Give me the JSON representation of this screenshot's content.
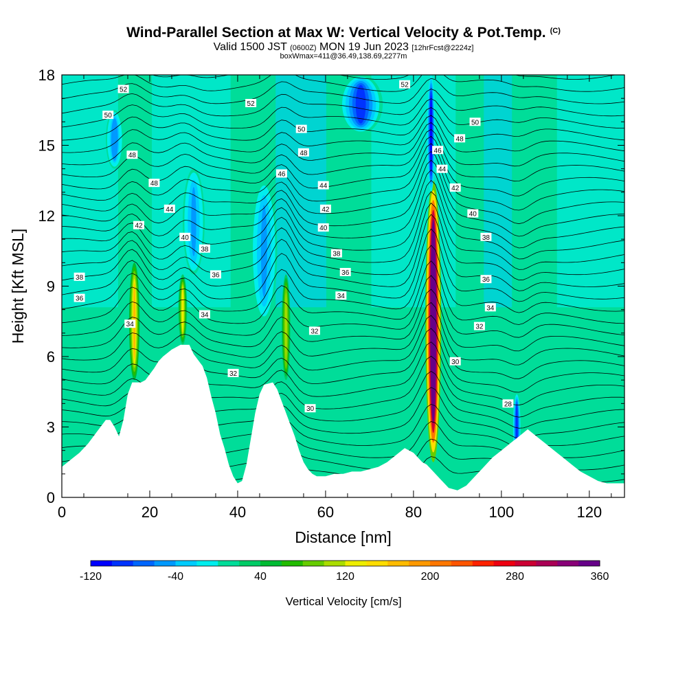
{
  "header": {
    "title": "Wind-Parallel Section at Max W: Vertical Velocity & Pot.Temp.",
    "copyright": "(C)",
    "valid_pre": "Valid 1500 JST",
    "valid_utc": "(0600Z)",
    "valid_post": "MON 19 Jun 2023",
    "forecast": "[12hrFcst@2224z]",
    "box_info": "boxWmax=411@36.49,138.69,2277m"
  },
  "chart_data": {
    "type": "heatmap",
    "xlabel": "Distance [nm]",
    "ylabel": "Height [Kft MSL]",
    "xlim": [
      0,
      128
    ],
    "ylim": [
      0,
      18
    ],
    "x_ticks": [
      "0",
      "20",
      "40",
      "60",
      "80",
      "100",
      "120"
    ],
    "x_tick_values": [
      0,
      20,
      40,
      60,
      80,
      100,
      120
    ],
    "y_ticks": [
      "0",
      "3",
      "6",
      "9",
      "12",
      "15",
      "18"
    ],
    "y_tick_values": [
      0,
      3,
      6,
      9,
      12,
      15,
      18
    ],
    "colorbar": {
      "label": "Vertical Velocity [cm/s]",
      "labels": [
        "-120",
        "-40",
        "40",
        "120",
        "200",
        "280",
        "360"
      ],
      "label_values": [
        -120,
        -40,
        40,
        120,
        200,
        280,
        360
      ],
      "min": -120,
      "step": 20,
      "colors": [
        "#0000ff",
        "#0033ff",
        "#0066ff",
        "#0099ff",
        "#00ccff",
        "#00eeee",
        "#00dd99",
        "#00cc66",
        "#00bb33",
        "#22bb00",
        "#66cc00",
        "#aadd00",
        "#eeee00",
        "#ffdd00",
        "#ffbb00",
        "#ff9900",
        "#ff7700",
        "#ff5500",
        "#ff2200",
        "#ee0011",
        "#cc0033",
        "#aa0055",
        "#880077",
        "#660088"
      ]
    },
    "vertical_velocity_features": [
      {
        "x_center": 16.5,
        "z_bottom": 5.0,
        "z_top": 10.0,
        "peak": 160,
        "half_width": 1.2
      },
      {
        "x_center": 27.5,
        "z_bottom": 6.5,
        "z_top": 9.5,
        "peak": 120,
        "half_width": 1.0
      },
      {
        "x_center": 51.0,
        "z_bottom": 5.0,
        "z_top": 9.5,
        "peak": 110,
        "half_width": 1.0
      },
      {
        "x_center": 84.5,
        "z_bottom": 1.5,
        "z_top": 13.5,
        "peak": 411,
        "half_width": 1.8
      },
      {
        "x_center": 84.0,
        "z_bottom": 13.0,
        "z_top": 18.0,
        "peak": -120,
        "half_width": 0.9
      },
      {
        "x_center": 68.0,
        "z_bottom": 15.5,
        "z_top": 18.0,
        "peak": -90,
        "half_width": 5.0
      },
      {
        "x_center": 103.5,
        "z_bottom": 1.5,
        "z_top": 4.5,
        "peak": -100,
        "half_width": 1.0
      },
      {
        "x_center": 12.0,
        "z_bottom": 14.0,
        "z_top": 16.5,
        "peak": -60,
        "half_width": 2.0
      },
      {
        "x_center": 30.0,
        "z_bottom": 9.5,
        "z_top": 14.0,
        "peak": -50,
        "half_width": 2.5
      },
      {
        "x_center": 46.0,
        "z_bottom": 7.5,
        "z_top": 13.5,
        "peak": -45,
        "half_width": 3.0
      }
    ],
    "potential_temperature_labels": [
      {
        "text": "52",
        "x": 14,
        "z": 17.4
      },
      {
        "text": "52",
        "x": 43,
        "z": 16.8
      },
      {
        "text": "52",
        "x": 78,
        "z": 17.6
      },
      {
        "text": "50",
        "x": 10.5,
        "z": 16.3
      },
      {
        "text": "50",
        "x": 54.5,
        "z": 15.7
      },
      {
        "text": "50",
        "x": 94,
        "z": 16.0
      },
      {
        "text": "48",
        "x": 16,
        "z": 14.6
      },
      {
        "text": "48",
        "x": 55,
        "z": 14.7
      },
      {
        "text": "48",
        "x": 90.5,
        "z": 15.3
      },
      {
        "text": "48",
        "x": 21,
        "z": 13.4
      },
      {
        "text": "46",
        "x": 50,
        "z": 13.8
      },
      {
        "text": "46",
        "x": 85.5,
        "z": 14.8
      },
      {
        "text": "44",
        "x": 24.5,
        "z": 12.3
      },
      {
        "text": "44",
        "x": 59.5,
        "z": 13.3
      },
      {
        "text": "44",
        "x": 86.5,
        "z": 14.0
      },
      {
        "text": "42",
        "x": 17.5,
        "z": 11.6
      },
      {
        "text": "42",
        "x": 60,
        "z": 12.3
      },
      {
        "text": "42",
        "x": 89.5,
        "z": 13.2
      },
      {
        "text": "40",
        "x": 28,
        "z": 11.1
      },
      {
        "text": "40",
        "x": 59.5,
        "z": 11.5
      },
      {
        "text": "40",
        "x": 93.5,
        "z": 12.1
      },
      {
        "text": "38",
        "x": 32.5,
        "z": 10.6
      },
      {
        "text": "38",
        "x": 62.5,
        "z": 10.4
      },
      {
        "text": "38",
        "x": 96.5,
        "z": 11.1
      },
      {
        "text": "38",
        "x": 4,
        "z": 9.4
      },
      {
        "text": "36",
        "x": 35,
        "z": 9.5
      },
      {
        "text": "36",
        "x": 64.5,
        "z": 9.6
      },
      {
        "text": "36",
        "x": 96.5,
        "z": 9.3
      },
      {
        "text": "36",
        "x": 4,
        "z": 8.5
      },
      {
        "text": "34",
        "x": 15.5,
        "z": 7.4
      },
      {
        "text": "34",
        "x": 32.5,
        "z": 7.8
      },
      {
        "text": "34",
        "x": 63.5,
        "z": 8.6
      },
      {
        "text": "34",
        "x": 97.5,
        "z": 8.1
      },
      {
        "text": "32",
        "x": 39,
        "z": 5.3
      },
      {
        "text": "32",
        "x": 57.5,
        "z": 7.1
      },
      {
        "text": "32",
        "x": 95,
        "z": 7.3
      },
      {
        "text": "30",
        "x": 56.5,
        "z": 3.8
      },
      {
        "text": "30",
        "x": 89.5,
        "z": 5.8
      },
      {
        "text": "28",
        "x": 101.5,
        "z": 4.0
      }
    ],
    "terrain_height_kft": [
      [
        0,
        1.3
      ],
      [
        2,
        1.6
      ],
      [
        4,
        1.9
      ],
      [
        6,
        2.3
      ],
      [
        8,
        2.8
      ],
      [
        10,
        3.3
      ],
      [
        11,
        3.3
      ],
      [
        12,
        3.0
      ],
      [
        13,
        2.6
      ],
      [
        14,
        3.3
      ],
      [
        15,
        4.4
      ],
      [
        16,
        4.9
      ],
      [
        18,
        4.9
      ],
      [
        19,
        5.0
      ],
      [
        21,
        5.5
      ],
      [
        22,
        5.8
      ],
      [
        23,
        6.0
      ],
      [
        25,
        6.3
      ],
      [
        27,
        6.5
      ],
      [
        29,
        6.5
      ],
      [
        30,
        6.1
      ],
      [
        32,
        5.6
      ],
      [
        33,
        5.1
      ],
      [
        34,
        4.3
      ],
      [
        35,
        3.6
      ],
      [
        36,
        2.7
      ],
      [
        37,
        2.1
      ],
      [
        38,
        1.4
      ],
      [
        39,
        0.9
      ],
      [
        40,
        0.6
      ],
      [
        41,
        0.7
      ],
      [
        42,
        1.4
      ],
      [
        43,
        2.5
      ],
      [
        44,
        3.6
      ],
      [
        45,
        4.4
      ],
      [
        46,
        4.8
      ],
      [
        48,
        4.9
      ],
      [
        49,
        4.6
      ],
      [
        50,
        4.1
      ],
      [
        51,
        3.6
      ],
      [
        52,
        3.1
      ],
      [
        53,
        2.6
      ],
      [
        54,
        2.0
      ],
      [
        55,
        1.5
      ],
      [
        56,
        1.2
      ],
      [
        57,
        1.0
      ],
      [
        58,
        0.9
      ],
      [
        60,
        0.9
      ],
      [
        62,
        1.0
      ],
      [
        64,
        1.0
      ],
      [
        66,
        1.1
      ],
      [
        68,
        1.1
      ],
      [
        70,
        1.2
      ],
      [
        72,
        1.3
      ],
      [
        74,
        1.5
      ],
      [
        76,
        1.8
      ],
      [
        78,
        2.1
      ],
      [
        80,
        1.9
      ],
      [
        82,
        1.5
      ],
      [
        83,
        1.4
      ],
      [
        84,
        1.2
      ],
      [
        86,
        0.8
      ],
      [
        88,
        0.4
      ],
      [
        90,
        0.3
      ],
      [
        92,
        0.5
      ],
      [
        94,
        0.9
      ],
      [
        96,
        1.3
      ],
      [
        98,
        1.7
      ],
      [
        100,
        2.0
      ],
      [
        102,
        2.3
      ],
      [
        104,
        2.6
      ],
      [
        106,
        2.9
      ],
      [
        108,
        2.6
      ],
      [
        110,
        2.3
      ],
      [
        112,
        2.0
      ],
      [
        114,
        1.7
      ],
      [
        116,
        1.4
      ],
      [
        118,
        1.1
      ],
      [
        120,
        0.9
      ],
      [
        122,
        0.7
      ],
      [
        124,
        0.6
      ],
      [
        126,
        0.6
      ],
      [
        128,
        0.6
      ]
    ],
    "grid": false
  }
}
